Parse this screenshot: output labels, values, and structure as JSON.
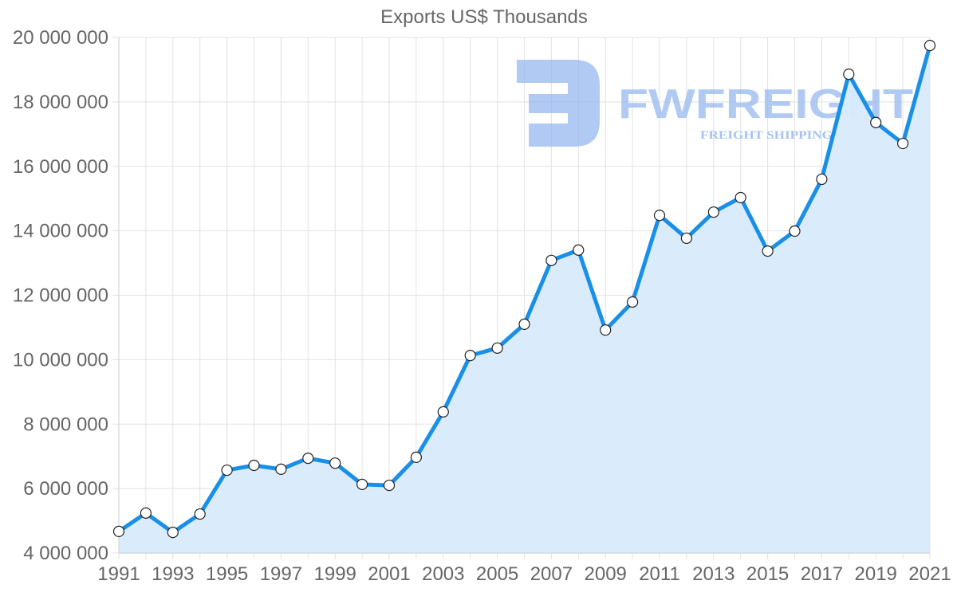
{
  "chart_data": {
    "type": "line",
    "title": "Exports US$ Thousands",
    "xlabel": "",
    "ylabel": "",
    "ylim": [
      4000000,
      20000000
    ],
    "grid": true,
    "legend": null,
    "fill": true,
    "y_ticks": [
      "4 000 000",
      "6 000 000",
      "8 000 000",
      "10 000 000",
      "12 000 000",
      "14 000 000",
      "16 000 000",
      "18 000 000",
      "20 000 000"
    ],
    "x_tick_labels": [
      "1991",
      "1993",
      "1995",
      "1997",
      "1999",
      "2001",
      "2003",
      "2005",
      "2007",
      "2009",
      "2011",
      "2013",
      "2015",
      "2017",
      "2019",
      "2021"
    ],
    "x": [
      1991,
      1992,
      1993,
      1994,
      1995,
      1996,
      1997,
      1998,
      1999,
      2000,
      2001,
      2002,
      2003,
      2004,
      2005,
      2006,
      2007,
      2008,
      2009,
      2010,
      2011,
      2012,
      2013,
      2014,
      2015,
      2016,
      2017,
      2018,
      2019,
      2020,
      2021
    ],
    "series": [
      {
        "name": "Exports US$ Thousands",
        "color": "#1a8fe8",
        "fill_color": "#d8ebfb",
        "values": [
          4670000,
          5240000,
          4640000,
          5210000,
          6570000,
          6720000,
          6600000,
          6940000,
          6790000,
          6130000,
          6100000,
          6970000,
          8380000,
          10130000,
          10360000,
          11100000,
          13080000,
          13400000,
          10920000,
          11790000,
          14480000,
          13770000,
          14580000,
          15030000,
          13370000,
          13990000,
          15600000,
          18860000,
          17360000,
          16710000,
          19750000
        ]
      }
    ]
  },
  "watermark": {
    "brand": "FWFREIGHT",
    "tagline": "FREIGHT SHIPPING"
  }
}
